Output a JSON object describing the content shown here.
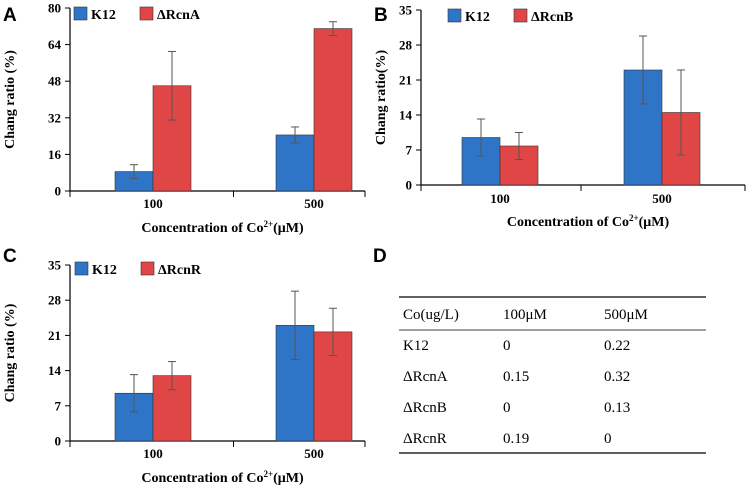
{
  "figure": {
    "panels": {
      "A": "A",
      "B": "B",
      "C": "C",
      "D": "D"
    },
    "xlabel_prefix": "Concentration of Co",
    "xlabel_superscript": "2+",
    "xlabel_suffix": "(μM)",
    "colors": {
      "k12": "#2e75c8",
      "mutant": "#e04646",
      "error": "#555555"
    }
  },
  "chart_data": [
    {
      "panel": "A",
      "type": "bar",
      "categories": [
        "100",
        "500"
      ],
      "series": [
        {
          "name": "K12",
          "values": [
            8.5,
            24.5
          ],
          "errors": [
            3,
            3.5
          ]
        },
        {
          "name": "ΔRcnA",
          "values": [
            46,
            71
          ],
          "errors": [
            15,
            3
          ]
        }
      ],
      "ylabel": "Chang ratio (%)",
      "xlabel": "Concentration of Co2+(μM)",
      "ylim": [
        0,
        80
      ],
      "yticks": [
        0,
        16,
        32,
        48,
        64,
        80
      ],
      "ytick_labels": [
        "0",
        "16",
        "32",
        "48",
        "64",
        "80"
      ]
    },
    {
      "panel": "B",
      "type": "bar",
      "categories": [
        "100",
        "500"
      ],
      "series": [
        {
          "name": "K12",
          "values": [
            9.5,
            23
          ],
          "errors": [
            3.7,
            6.8
          ]
        },
        {
          "name": "ΔRcnB",
          "values": [
            7.8,
            14.5
          ],
          "errors": [
            2.7,
            8.5
          ]
        }
      ],
      "ylabel": "Chang ratio(%)",
      "xlabel": "Concentration of Co2+(μM)",
      "ylim": [
        0,
        35
      ],
      "yticks": [
        0,
        7,
        14,
        21,
        28,
        35
      ],
      "ytick_labels": [
        "0",
        "7",
        "14",
        "21",
        "28",
        "35"
      ]
    },
    {
      "panel": "C",
      "type": "bar",
      "categories": [
        "100",
        "500"
      ],
      "series": [
        {
          "name": "K12",
          "values": [
            9.5,
            23
          ],
          "errors": [
            3.7,
            6.8
          ]
        },
        {
          "name": "ΔRcnR",
          "values": [
            13,
            21.7
          ],
          "errors": [
            2.8,
            4.7
          ]
        }
      ],
      "ylabel": "Chang ratio (%)",
      "xlabel": "Concentration of Co2+(μM)",
      "ylim": [
        0,
        35
      ],
      "yticks": [
        0,
        7,
        14,
        21,
        28,
        35
      ],
      "ytick_labels": [
        "0",
        "7",
        "14",
        "21",
        "28",
        "35"
      ]
    },
    {
      "panel": "D",
      "type": "table",
      "headers": [
        "Co(ug/L)",
        "100μM",
        "500μM"
      ],
      "rows": [
        [
          "K12",
          "0",
          "0.22"
        ],
        [
          "ΔRcnA",
          "0.15",
          "0.32"
        ],
        [
          "ΔRcnB",
          "0",
          "0.13"
        ],
        [
          "ΔRcnR",
          "0.19",
          "0"
        ]
      ]
    }
  ]
}
